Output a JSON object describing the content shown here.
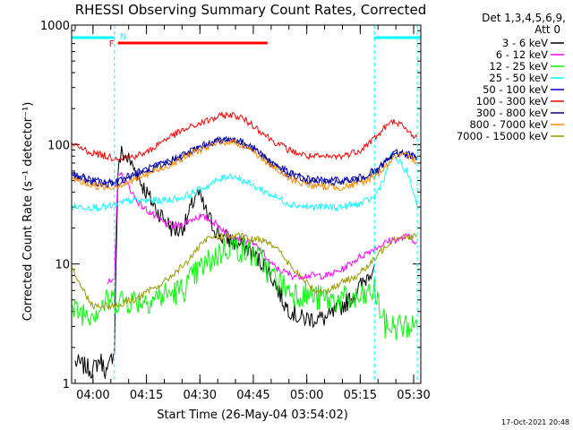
{
  "chart_data": {
    "type": "line",
    "title": "RHESSI Observing Summary Count Rates, Corrected",
    "xlabel": "Start Time (26-May-04 03:54:02)",
    "ylabel": "Corrected Count Rate (s⁻¹ detector⁻¹)",
    "y_scale": "log",
    "ylim": [
      1,
      1000
    ],
    "xlim": [
      "03:54",
      "05:32"
    ],
    "x_ticks": [
      "04:00",
      "04:15",
      "04:30",
      "04:45",
      "05:00",
      "05:15",
      "05:30"
    ],
    "y_ticks": [
      "1",
      "10",
      "100",
      "1000"
    ],
    "legend_header": [
      "Det 1,3,4,5,6,9,",
      "Att 0"
    ],
    "legend_position": "right",
    "timestamp": "17-Oct-2021 20:48",
    "flags": {
      "night": {
        "label": "N",
        "color": "#00ffff",
        "intervals": [
          [
            "03:54",
            "04:06"
          ],
          [
            "05:19",
            "05:32"
          ]
        ]
      },
      "flare": {
        "label": "F",
        "color": "#ff0000",
        "intervals": [
          [
            "04:07",
            "04:49"
          ]
        ]
      },
      "boundaries": [
        "04:06",
        "05:19",
        "05:31"
      ]
    },
    "series": [
      {
        "name": "3 - 6 keV",
        "color": "#000000",
        "x": [
          "03:55",
          "04:00",
          "04:02",
          "04:04",
          "04:06",
          "04:07",
          "04:08",
          "04:10",
          "04:12",
          "04:14",
          "04:16",
          "04:18",
          "04:20",
          "04:22",
          "04:24",
          "04:26",
          "04:28",
          "04:29",
          "04:30",
          "04:32",
          "04:34",
          "04:36",
          "04:38",
          "04:40",
          "04:42",
          "04:44",
          "04:46",
          "04:48",
          "04:50",
          "04:52",
          "04:54",
          "04:56",
          "04:58",
          "05:00",
          "05:02",
          "05:04",
          "05:06",
          "05:08",
          "05:10",
          "05:12",
          "05:14",
          "05:16",
          "05:18",
          "05:19"
        ],
        "values": [
          1.5,
          1.3,
          1.6,
          1.2,
          2,
          60,
          85,
          75,
          60,
          45,
          35,
          28,
          24,
          20,
          19,
          22,
          32,
          40,
          36,
          26,
          20,
          17,
          16,
          15,
          14,
          13,
          11,
          10,
          8,
          6,
          4.5,
          4,
          3.5,
          3.5,
          3.5,
          3.5,
          3.5,
          4,
          4.5,
          5,
          6,
          7,
          9,
          10
        ]
      },
      {
        "name": "6 - 12 keV",
        "color": "#ff00ff",
        "x": [
          "04:04",
          "04:06",
          "04:07",
          "04:08",
          "04:10",
          "04:12",
          "04:14",
          "04:16",
          "04:18",
          "04:20",
          "04:22",
          "04:24",
          "04:26",
          "04:28",
          "04:30",
          "04:32",
          "04:34",
          "04:36",
          "04:38",
          "04:40",
          "04:42",
          "04:44",
          "04:46",
          "04:48",
          "04:50",
          "04:52",
          "04:54",
          "04:56",
          "04:58",
          "05:00",
          "05:02",
          "05:04",
          "05:06",
          "05:08",
          "05:10",
          "05:12",
          "05:14",
          "05:16",
          "05:18",
          "05:20",
          "05:22",
          "05:24",
          "05:26",
          "05:28",
          "05:30",
          "05:31"
        ],
        "values": [
          7,
          7,
          60,
          55,
          45,
          35,
          30,
          27,
          24,
          22,
          21,
          21,
          22,
          24,
          25,
          24,
          22,
          20,
          18,
          17,
          16,
          15,
          14,
          12,
          10,
          9,
          8.5,
          8,
          8,
          8,
          8,
          8,
          8,
          8.5,
          9,
          10,
          11,
          12,
          13,
          14,
          15,
          16,
          16,
          17,
          16,
          15
        ]
      },
      {
        "name": "12 - 25 keV",
        "color": "#00ff00",
        "x": [
          "03:54",
          "04:00",
          "04:05",
          "04:10",
          "04:15",
          "04:20",
          "04:25",
          "04:30",
          "04:35",
          "04:38",
          "04:40",
          "04:42",
          "04:45",
          "04:48",
          "04:50",
          "04:55",
          "05:00",
          "05:05",
          "05:10",
          "05:15",
          "05:19",
          "05:22",
          "05:26",
          "05:30",
          "05:31"
        ],
        "values": [
          4,
          4,
          5,
          5,
          5,
          5.5,
          6,
          9,
          12,
          14,
          14,
          13,
          12,
          10,
          8,
          6,
          5.5,
          5,
          5,
          5,
          6,
          3,
          3,
          3,
          3
        ]
      },
      {
        "name": "25 - 50 keV",
        "color": "#00ffff",
        "x": [
          "03:54",
          "04:00",
          "04:05",
          "04:10",
          "04:15",
          "04:20",
          "04:25",
          "04:30",
          "04:35",
          "04:38",
          "04:40",
          "04:42",
          "04:45",
          "04:50",
          "04:55",
          "05:00",
          "05:05",
          "05:10",
          "05:15",
          "05:19",
          "05:22",
          "05:24",
          "05:26",
          "05:28",
          "05:30",
          "05:31"
        ],
        "values": [
          30,
          30,
          30,
          34,
          34,
          34,
          36,
          42,
          50,
          55,
          54,
          50,
          45,
          38,
          32,
          30,
          30,
          30,
          32,
          36,
          55,
          85,
          70,
          60,
          40,
          30
        ]
      },
      {
        "name": "50 - 100 keV",
        "color": "#0000cc",
        "x": [
          "03:54",
          "04:00",
          "04:05",
          "04:10",
          "04:15",
          "04:20",
          "04:25",
          "04:30",
          "04:35",
          "04:38",
          "04:40",
          "04:42",
          "04:45",
          "04:50",
          "04:55",
          "05:00",
          "05:05",
          "05:10",
          "05:15",
          "05:20",
          "05:22",
          "05:25",
          "05:28",
          "05:30",
          "05:31"
        ],
        "values": [
          58,
          50,
          48,
          55,
          62,
          70,
          82,
          96,
          108,
          112,
          110,
          104,
          94,
          72,
          58,
          52,
          50,
          50,
          53,
          62,
          72,
          86,
          85,
          80,
          76
        ]
      },
      {
        "name": "100 - 300 keV",
        "color": "#ff0000",
        "x": [
          "03:54",
          "04:00",
          "04:05",
          "04:10",
          "04:15",
          "04:20",
          "04:25",
          "04:30",
          "04:35",
          "04:38",
          "04:40",
          "04:42",
          "04:45",
          "04:50",
          "04:55",
          "05:00",
          "05:05",
          "05:10",
          "05:15",
          "05:20",
          "05:22",
          "05:25",
          "05:28",
          "05:30",
          "05:31"
        ],
        "values": [
          100,
          85,
          78,
          78,
          85,
          110,
          130,
          150,
          170,
          178,
          175,
          165,
          145,
          110,
          90,
          80,
          78,
          80,
          90,
          120,
          140,
          160,
          130,
          120,
          115
        ]
      },
      {
        "name": "300 - 800 keV",
        "color": "#000088",
        "x": [
          "03:54",
          "04:00",
          "04:05",
          "04:10",
          "04:15",
          "04:20",
          "04:25",
          "04:30",
          "04:35",
          "04:38",
          "04:40",
          "04:42",
          "04:45",
          "04:50",
          "04:55",
          "05:00",
          "05:05",
          "05:10",
          "05:15",
          "05:20",
          "05:22",
          "05:25",
          "05:28",
          "05:30",
          "05:31"
        ],
        "values": [
          56,
          48,
          46,
          52,
          60,
          68,
          80,
          94,
          106,
          110,
          108,
          102,
          92,
          70,
          56,
          50,
          48,
          48,
          51,
          60,
          70,
          84,
          83,
          78,
          74
        ]
      },
      {
        "name": "800 - 7000 keV",
        "color": "#ff8800",
        "x": [
          "03:54",
          "04:00",
          "04:05",
          "04:10",
          "04:15",
          "04:20",
          "04:25",
          "04:30",
          "04:35",
          "04:38",
          "04:40",
          "04:42",
          "04:45",
          "04:50",
          "04:55",
          "05:00",
          "05:05",
          "05:10",
          "05:15",
          "05:20",
          "05:22",
          "05:25",
          "05:28",
          "05:30",
          "05:31"
        ],
        "values": [
          52,
          45,
          44,
          48,
          56,
          64,
          76,
          90,
          102,
          106,
          104,
          98,
          88,
          66,
          52,
          46,
          44,
          44,
          47,
          56,
          66,
          80,
          80,
          75,
          70
        ]
      },
      {
        "name": "7000 - 15000 keV",
        "color": "#999900",
        "x": [
          "03:54",
          "03:56",
          "03:58",
          "04:00",
          "04:02",
          "04:04",
          "04:06",
          "04:08",
          "04:10",
          "04:12",
          "04:14",
          "04:16",
          "04:18",
          "04:20",
          "04:22",
          "04:24",
          "04:26",
          "04:28",
          "04:30",
          "04:32",
          "04:34",
          "04:36",
          "04:38",
          "04:40",
          "04:42",
          "04:44",
          "04:46",
          "04:48",
          "04:50",
          "04:52",
          "04:54",
          "04:56",
          "04:58",
          "05:00",
          "05:02",
          "05:04",
          "05:06",
          "05:08",
          "05:10",
          "05:12",
          "05:14",
          "05:16",
          "05:18",
          "05:20",
          "05:22",
          "05:24",
          "05:26",
          "05:28",
          "05:30",
          "05:31"
        ],
        "values": [
          10,
          7,
          5.5,
          4.5,
          4.5,
          4.5,
          4.5,
          4.5,
          5,
          5,
          5.5,
          6,
          6.5,
          7,
          8,
          9,
          10,
          12,
          14,
          16,
          17,
          17,
          17,
          17,
          17,
          16,
          16,
          16,
          15,
          13,
          11,
          9,
          8,
          7,
          6,
          6,
          6,
          6.5,
          7,
          7.5,
          8,
          9,
          10,
          12,
          14,
          16,
          17,
          17,
          17,
          17
        ]
      }
    ]
  }
}
